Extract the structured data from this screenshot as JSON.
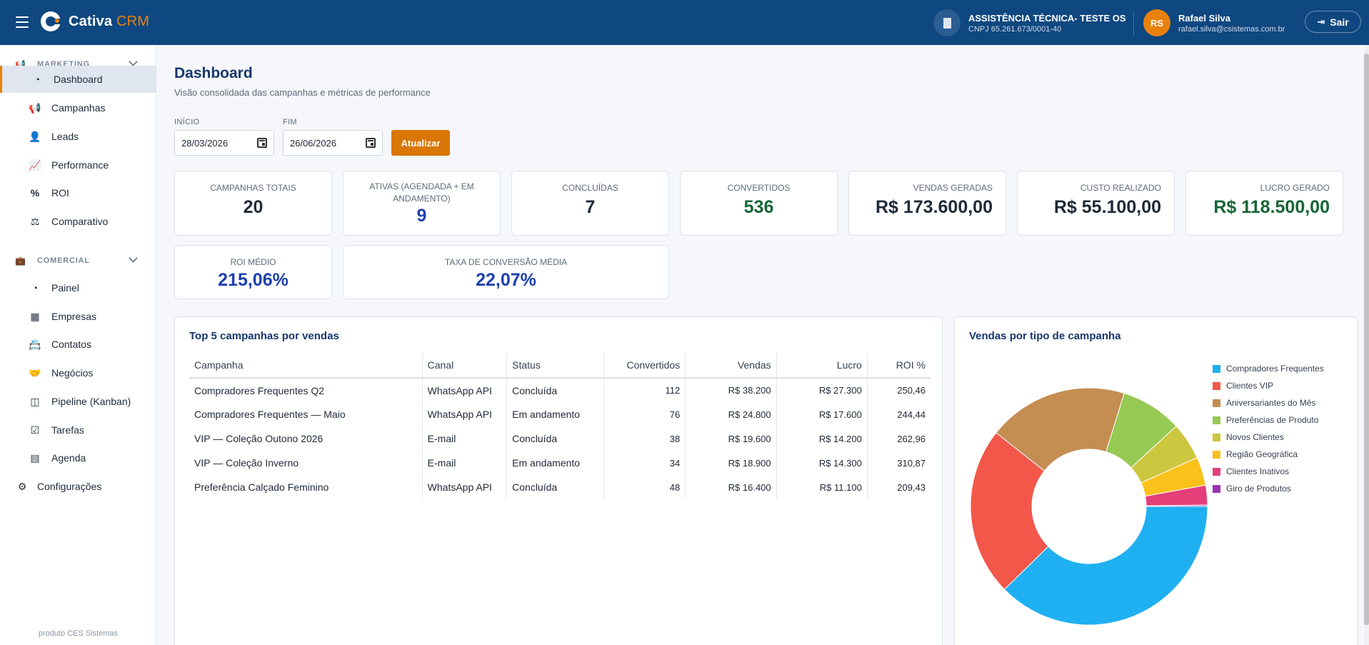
{
  "app": {
    "brand_main": "Cativa",
    "brand_accent": "CRM",
    "company_name": "ASSISTÊNCIA TÉCNICA- TESTE OS",
    "company_cnpj": "CNPJ 65.261.673/0001-40",
    "user_initials": "RS",
    "user_name": "Rafael Silva",
    "user_email": "rafael.silva@csistemas.com.br",
    "logout_label": "Sair"
  },
  "sidebar": {
    "marketing_label": "MARKETING",
    "marketing_items": [
      {
        "label": "Dashboard",
        "icon": "gauge-icon",
        "active": true
      },
      {
        "label": "Campanhas",
        "icon": "megaphone-icon"
      },
      {
        "label": "Leads",
        "icon": "user-plus-icon"
      },
      {
        "label": "Performance",
        "icon": "line-chart-icon"
      },
      {
        "label": "ROI",
        "icon": "percent-icon"
      },
      {
        "label": "Comparativo",
        "icon": "scale-icon"
      }
    ],
    "comercial_label": "COMERCIAL",
    "comercial_items": [
      {
        "label": "Painel",
        "icon": "gauge-icon"
      },
      {
        "label": "Empresas",
        "icon": "building-icon"
      },
      {
        "label": "Contatos",
        "icon": "contact-book-icon"
      },
      {
        "label": "Negócios",
        "icon": "handshake-icon"
      },
      {
        "label": "Pipeline (Kanban)",
        "icon": "columns-icon"
      },
      {
        "label": "Tarefas",
        "icon": "checkbox-icon"
      },
      {
        "label": "Agenda",
        "icon": "calendar-icon"
      }
    ],
    "config_label": "Configurações",
    "footer": "produto CES Sistemas"
  },
  "page": {
    "title": "Dashboard",
    "subtitle": "Visão consolidada das campanhas e métricas de performance",
    "start_label": "INÍCIO",
    "start_value": "28/03/2026",
    "end_label": "FIM",
    "end_value": "26/06/2026",
    "update_label": "Atualizar"
  },
  "kpis": [
    {
      "label": "CAMPANHAS TOTAIS",
      "value": "20"
    },
    {
      "label": "ATIVAS (AGENDADA + EM ANDAMENTO)",
      "value": "9"
    },
    {
      "label": "CONCLUÍDAS",
      "value": "7"
    },
    {
      "label": "CONVERTIDOS",
      "value": "536"
    },
    {
      "label": "VENDAS GERADAS",
      "value": "R$ 173.600,00"
    },
    {
      "label": "CUSTO REALIZADO",
      "value": "R$ 55.100,00"
    },
    {
      "label": "LUCRO GERADO",
      "value": "R$ 118.500,00"
    },
    {
      "label": "ROI MÉDIO",
      "value": "215,06%"
    },
    {
      "label": "TAXA DE CONVERSÃO MÉDIA",
      "value": "22,07%"
    }
  ],
  "top5": {
    "title": "Top 5 campanhas por vendas",
    "headers": [
      "Campanha",
      "Canal",
      "Status",
      "Convertidos",
      "Vendas",
      "Lucro",
      "ROI %"
    ],
    "rows": [
      [
        "Compradores Frequentes Q2",
        "WhatsApp API",
        "Concluída",
        "112",
        "R$ 38.200",
        "R$ 27.300",
        "250,46"
      ],
      [
        "Compradores Frequentes — Maio",
        "WhatsApp API",
        "Em andamento",
        "76",
        "R$ 24.800",
        "R$ 17.600",
        "244,44"
      ],
      [
        "VIP — Coleção Outono 2026",
        "E-mail",
        "Concluída",
        "38",
        "R$ 19.600",
        "R$ 14.200",
        "262,96"
      ],
      [
        "VIP — Coleção Inverno",
        "E-mail",
        "Em andamento",
        "34",
        "R$ 18.900",
        "R$ 14.300",
        "310,87"
      ],
      [
        "Preferência Calçado Feminino",
        "WhatsApp API",
        "Concluída",
        "48",
        "R$ 16.400",
        "R$ 11.100",
        "209,43"
      ]
    ]
  },
  "chart_data": {
    "type": "pie",
    "title": "Vendas por tipo de campanha",
    "categories": [
      "Compradores Frequentes",
      "Clientes VIP",
      "Aniversariantes do Mês",
      "Preferências de Produto",
      "Novos Clientes",
      "Região Geográfica",
      "Clientes Inativos",
      "Giro de Produtos"
    ],
    "values": [
      63000,
      38500,
      32000,
      14000,
      8500,
      6500,
      4500,
      300
    ],
    "colors": [
      "#1fb0f2",
      "#f2574a",
      "#c48d52",
      "#97c955",
      "#cdc63f",
      "#fac11b",
      "#e43f78",
      "#9b34b5"
    ],
    "donut": true,
    "legend": "right"
  }
}
